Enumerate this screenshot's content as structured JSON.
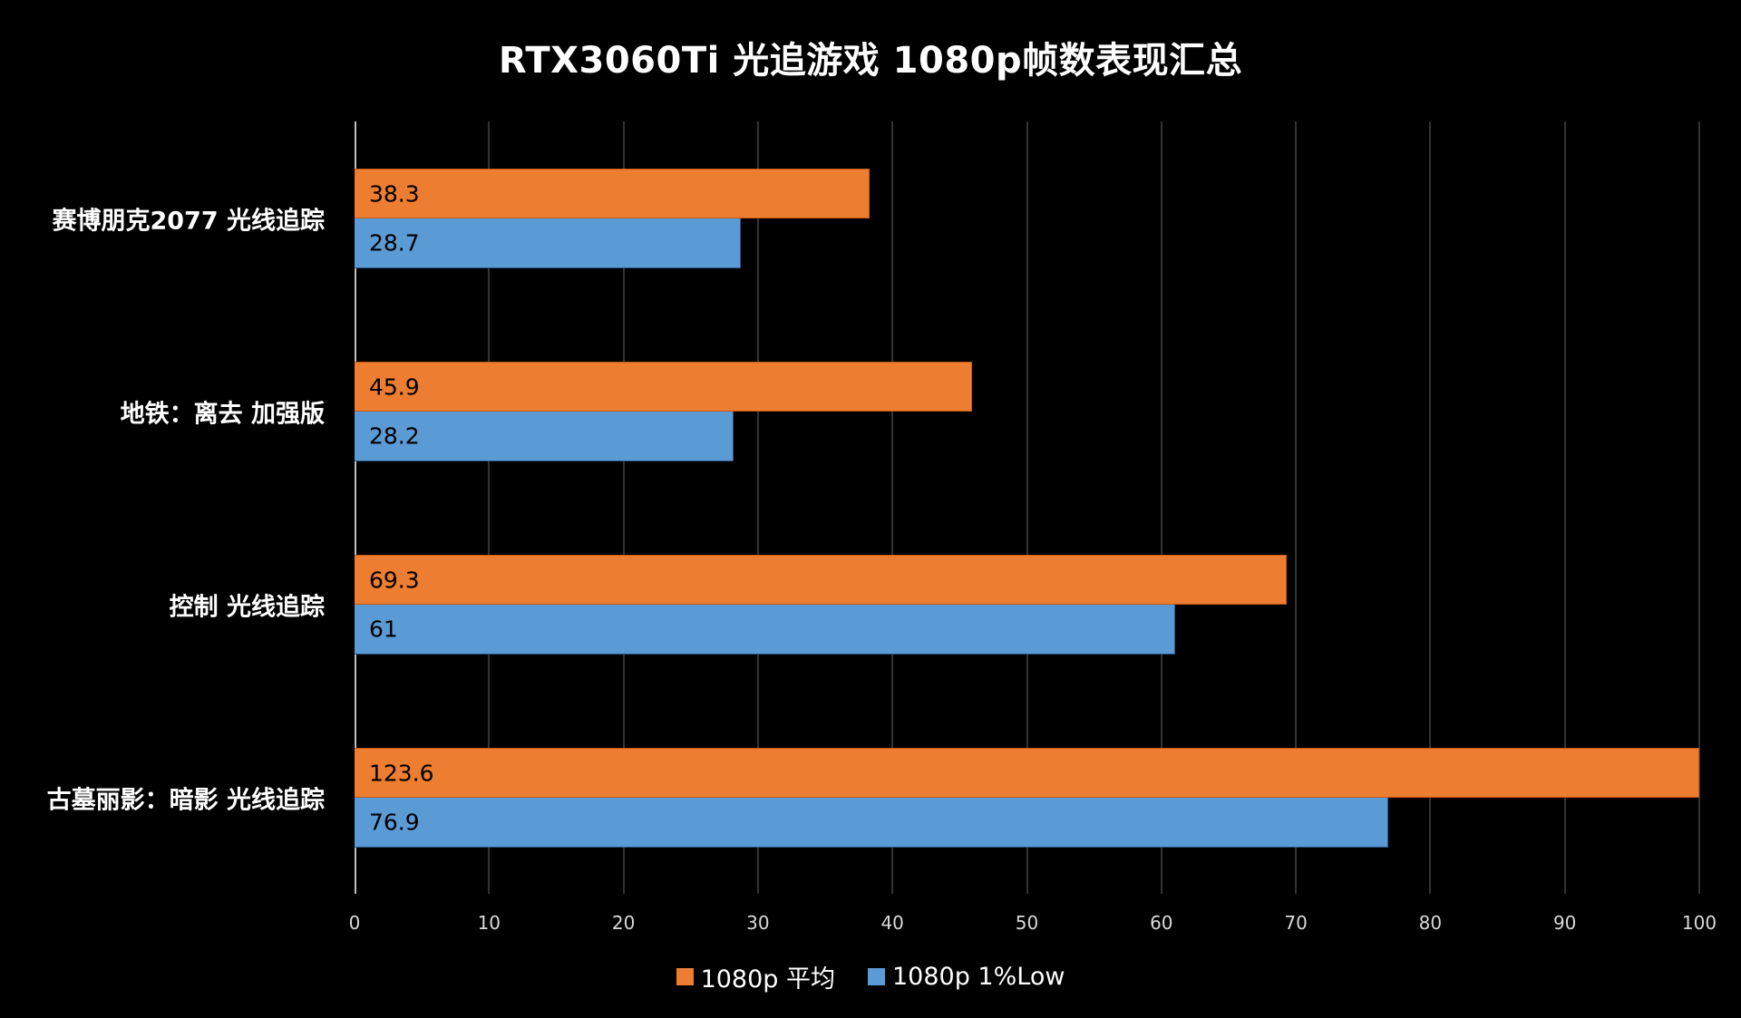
{
  "title": "RTX3060Ti  光追游戏 1080p帧数表现汇总",
  "colors": {
    "avg": "#ed7d31",
    "low": "#5b9bd5",
    "background": "#000000"
  },
  "legend": [
    {
      "label": "1080p 平均",
      "color": "#ed7d31"
    },
    {
      "label": "1080p 1%Low",
      "color": "#5b9bd5"
    }
  ],
  "axis": {
    "ticks": [
      "0",
      "10",
      "20",
      "30",
      "40",
      "50",
      "60",
      "70",
      "80",
      "90",
      "100"
    ]
  },
  "categories": [
    {
      "label": "赛博朋克2077 光线追踪",
      "avg": "38.3",
      "low": "28.7"
    },
    {
      "label": "地铁：离去 加强版",
      "avg": "45.9",
      "low": "28.2"
    },
    {
      "label": "控制 光线追踪",
      "avg": "69.3",
      "low": "61"
    },
    {
      "label": "古墓丽影：暗影 光线追踪",
      "avg": "123.6",
      "low": "76.9"
    }
  ],
  "chart_data": {
    "type": "bar",
    "orientation": "horizontal",
    "title": "RTX3060Ti  光追游戏 1080p帧数表现汇总",
    "categories": [
      "赛博朋克2077 光线追踪",
      "地铁：离去 加强版",
      "控制 光线追踪",
      "古墓丽影：暗影 光线追踪"
    ],
    "series": [
      {
        "name": "1080p 平均",
        "color": "#ed7d31",
        "values": [
          38.3,
          45.9,
          69.3,
          123.6
        ]
      },
      {
        "name": "1080p 1%Low",
        "color": "#5b9bd5",
        "values": [
          28.7,
          28.2,
          61,
          76.9
        ]
      }
    ],
    "xlabel": "",
    "ylabel": "",
    "xlim": [
      0,
      100
    ],
    "xticks": [
      0,
      10,
      20,
      30,
      40,
      50,
      60,
      70,
      80,
      90,
      100
    ],
    "grid": true,
    "legend_position": "bottom",
    "data_labels": true,
    "notes": "古墓丽影 average bar (123.6) exceeds axis max and is clipped at 100"
  }
}
